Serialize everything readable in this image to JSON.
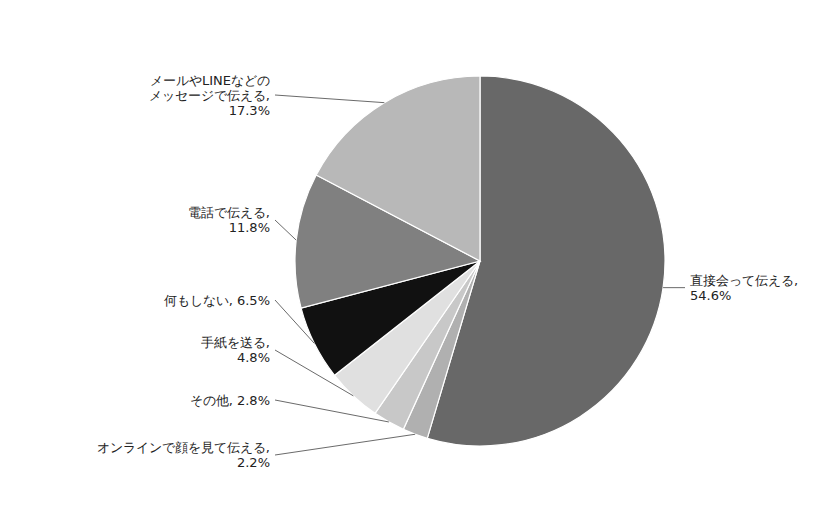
{
  "chart_data": {
    "type": "pie",
    "categories": [
      "直接会って伝える,\n54.6%",
      "オンラインで顔を見て伝える,\n2.2%",
      "その他, 2.8%",
      "手紙を送る,\n4.8%",
      "何もしない, 6.5%",
      "電話で伝える,\n11.8%",
      "メールやLINEなどの\nメッセージで伝える,\n17.3%"
    ],
    "values": [
      54.6,
      2.2,
      2.8,
      4.8,
      6.5,
      11.8,
      17.3
    ],
    "colors": [
      "#686868",
      "#b0b0b0",
      "#c8c8c8",
      "#e0e0e0",
      "#111111",
      "#808080",
      "#b8b8b8"
    ]
  }
}
